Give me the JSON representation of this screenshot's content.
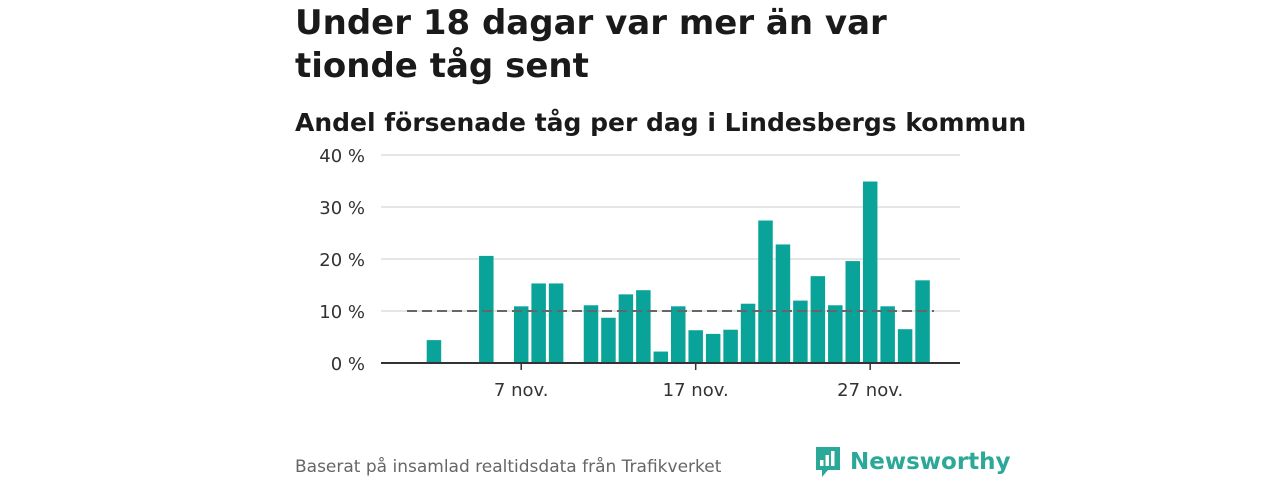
{
  "title": "Under 18 dagar var mer än var tionde tåg sent",
  "subtitle": "Andel försenade tåg per dag i Lindesbergs kommun",
  "source": "Baserat på insamlad realtidsdata från Trafikverket",
  "brand": {
    "name": "Newsworthy",
    "color": "#2ba897"
  },
  "colors": {
    "bar": "#0aa399",
    "reference_line": "#666666",
    "grid": "#dddddd",
    "axis": "#333333"
  },
  "chart_data": {
    "type": "bar",
    "x_unit": "day",
    "x": [
      "2023-11-01",
      "2023-11-02",
      "2023-11-03",
      "2023-11-04",
      "2023-11-05",
      "2023-11-06",
      "2023-11-07",
      "2023-11-08",
      "2023-11-09",
      "2023-11-10",
      "2023-11-11",
      "2023-11-12",
      "2023-11-13",
      "2023-11-14",
      "2023-11-15",
      "2023-11-16",
      "2023-11-17",
      "2023-11-18",
      "2023-11-19",
      "2023-11-20",
      "2023-11-21",
      "2023-11-22",
      "2023-11-23",
      "2023-11-24",
      "2023-11-25",
      "2023-11-26",
      "2023-11-27",
      "2023-11-28",
      "2023-11-29",
      "2023-11-30"
    ],
    "values": [
      null,
      4.4,
      null,
      null,
      20.6,
      null,
      10.9,
      15.3,
      15.3,
      null,
      11.1,
      8.7,
      13.2,
      14.0,
      2.2,
      10.9,
      6.3,
      5.6,
      6.4,
      11.4,
      27.4,
      22.8,
      12.0,
      16.7,
      11.1,
      19.6,
      34.9,
      10.9,
      6.5,
      15.9
    ],
    "reference_line": 10,
    "ylim": [
      0,
      40
    ],
    "y_ticks": [
      0,
      10,
      20,
      30,
      40
    ],
    "y_tick_labels": [
      "0 %",
      "10 %",
      "20 %",
      "30 %",
      "40 %"
    ],
    "x_ticks": [
      "2023-11-07",
      "2023-11-17",
      "2023-11-27"
    ],
    "x_tick_labels": [
      "7 nov.",
      "17 nov.",
      "27 nov."
    ],
    "grid": true,
    "legend": false
  }
}
